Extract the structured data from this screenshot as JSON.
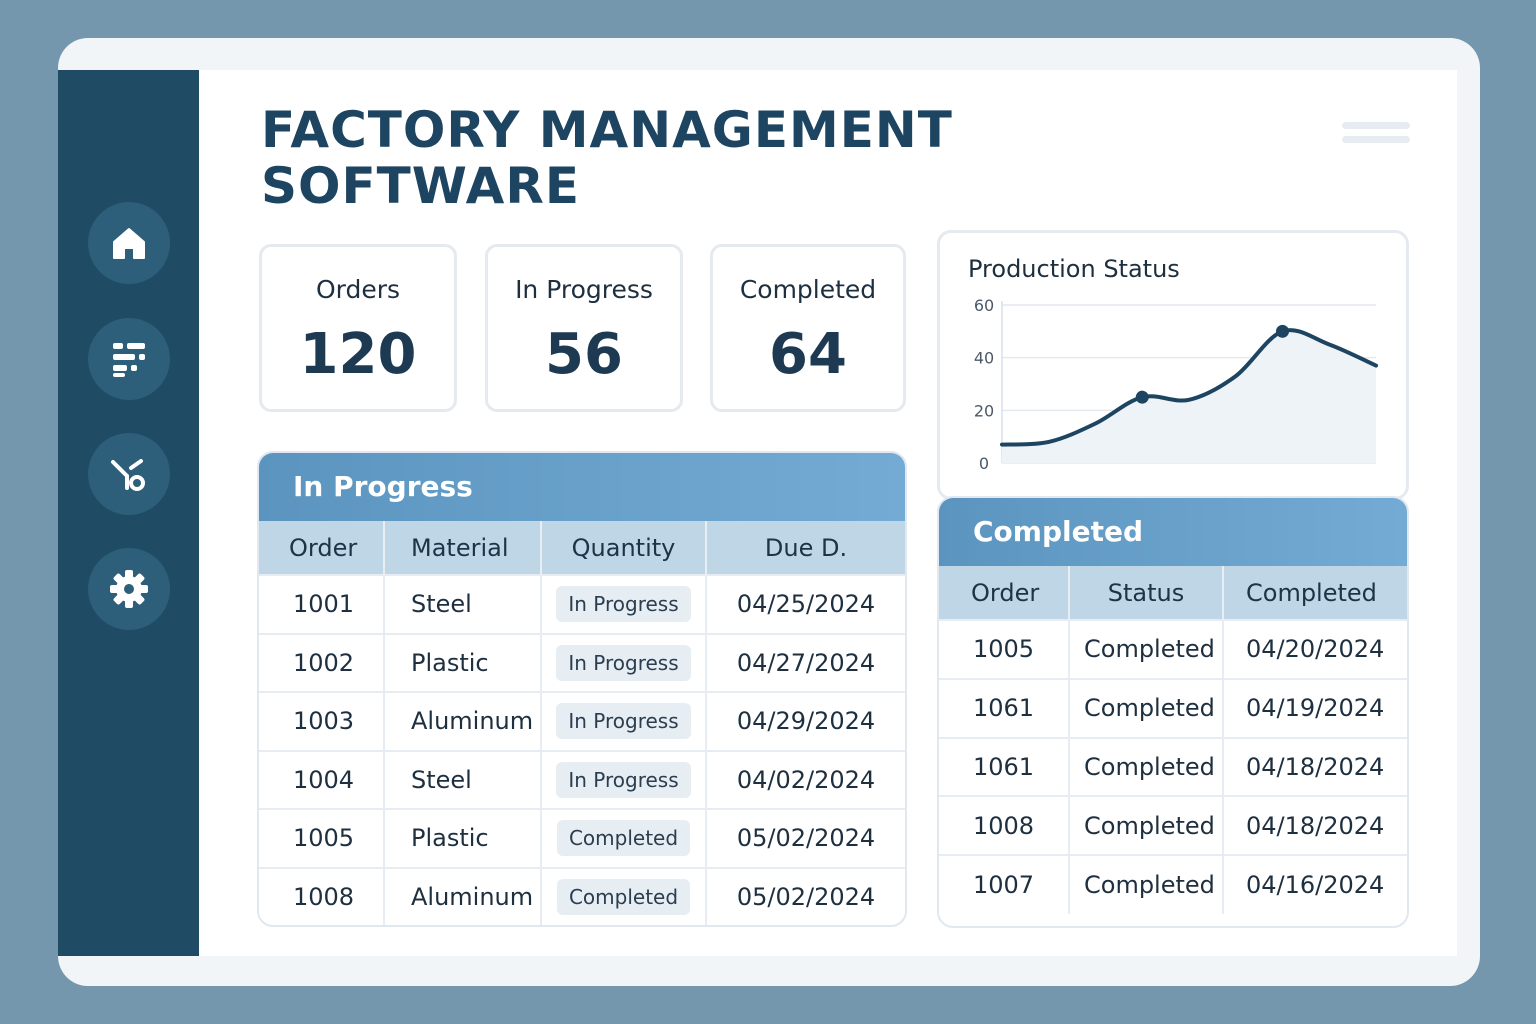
{
  "app": {
    "title": "FACTORY MANAGEMENT SOFTWARE"
  },
  "sidebar": {
    "items": [
      {
        "icon": "home-icon"
      },
      {
        "icon": "dashboard-icon"
      },
      {
        "icon": "workflow-icon"
      },
      {
        "icon": "gear-icon"
      }
    ]
  },
  "stats": [
    {
      "label": "Orders",
      "value": "120"
    },
    {
      "label": "In Progress",
      "value": "56"
    },
    {
      "label": "Completed",
      "value": "64"
    }
  ],
  "in_progress": {
    "title": "In Progress",
    "columns": [
      "Order",
      "Material",
      "Quantity",
      "Due D."
    ],
    "rows": [
      [
        "1001",
        "Steel",
        "In Progress",
        "04/25/2024"
      ],
      [
        "1002",
        "Plastic",
        "In Progress",
        "04/27/2024"
      ],
      [
        "1003",
        "Aluminum",
        "In Progress",
        "04/29/2024"
      ],
      [
        "1004",
        "Steel",
        "In Progress",
        "04/02/2024"
      ],
      [
        "1005",
        "Plastic",
        "Completed",
        "05/02/2024"
      ],
      [
        "1008",
        "Aluminum",
        "Completed",
        "05/02/2024"
      ]
    ]
  },
  "completed": {
    "title": "Completed",
    "columns": [
      "Order",
      "Status",
      "Completed"
    ],
    "rows": [
      [
        "1005",
        "Completed",
        "04/20/2024"
      ],
      [
        "1061",
        "Completed",
        "04/19/2024"
      ],
      [
        "1061",
        "Completed",
        "04/18/2024"
      ],
      [
        "1008",
        "Completed",
        "04/18/2024"
      ],
      [
        "1007",
        "Completed",
        "04/16/2024"
      ]
    ]
  },
  "colors": {
    "accent": "#5b95bf",
    "sidebar": "#1f4b65",
    "line": "#1d4460"
  },
  "chart_data": {
    "type": "line",
    "title": "Production Status",
    "xlabel": "",
    "ylabel": "",
    "ylim": [
      0,
      60
    ],
    "yticks": [
      "60",
      "40",
      "20",
      "0"
    ],
    "grid": true,
    "x": [
      0,
      1,
      2,
      3,
      4,
      5,
      6,
      7,
      8
    ],
    "series": [
      {
        "values": [
          7,
          8,
          15,
          25,
          24,
          33,
          50,
          45,
          37
        ],
        "markers": [
          3,
          6
        ]
      }
    ]
  }
}
